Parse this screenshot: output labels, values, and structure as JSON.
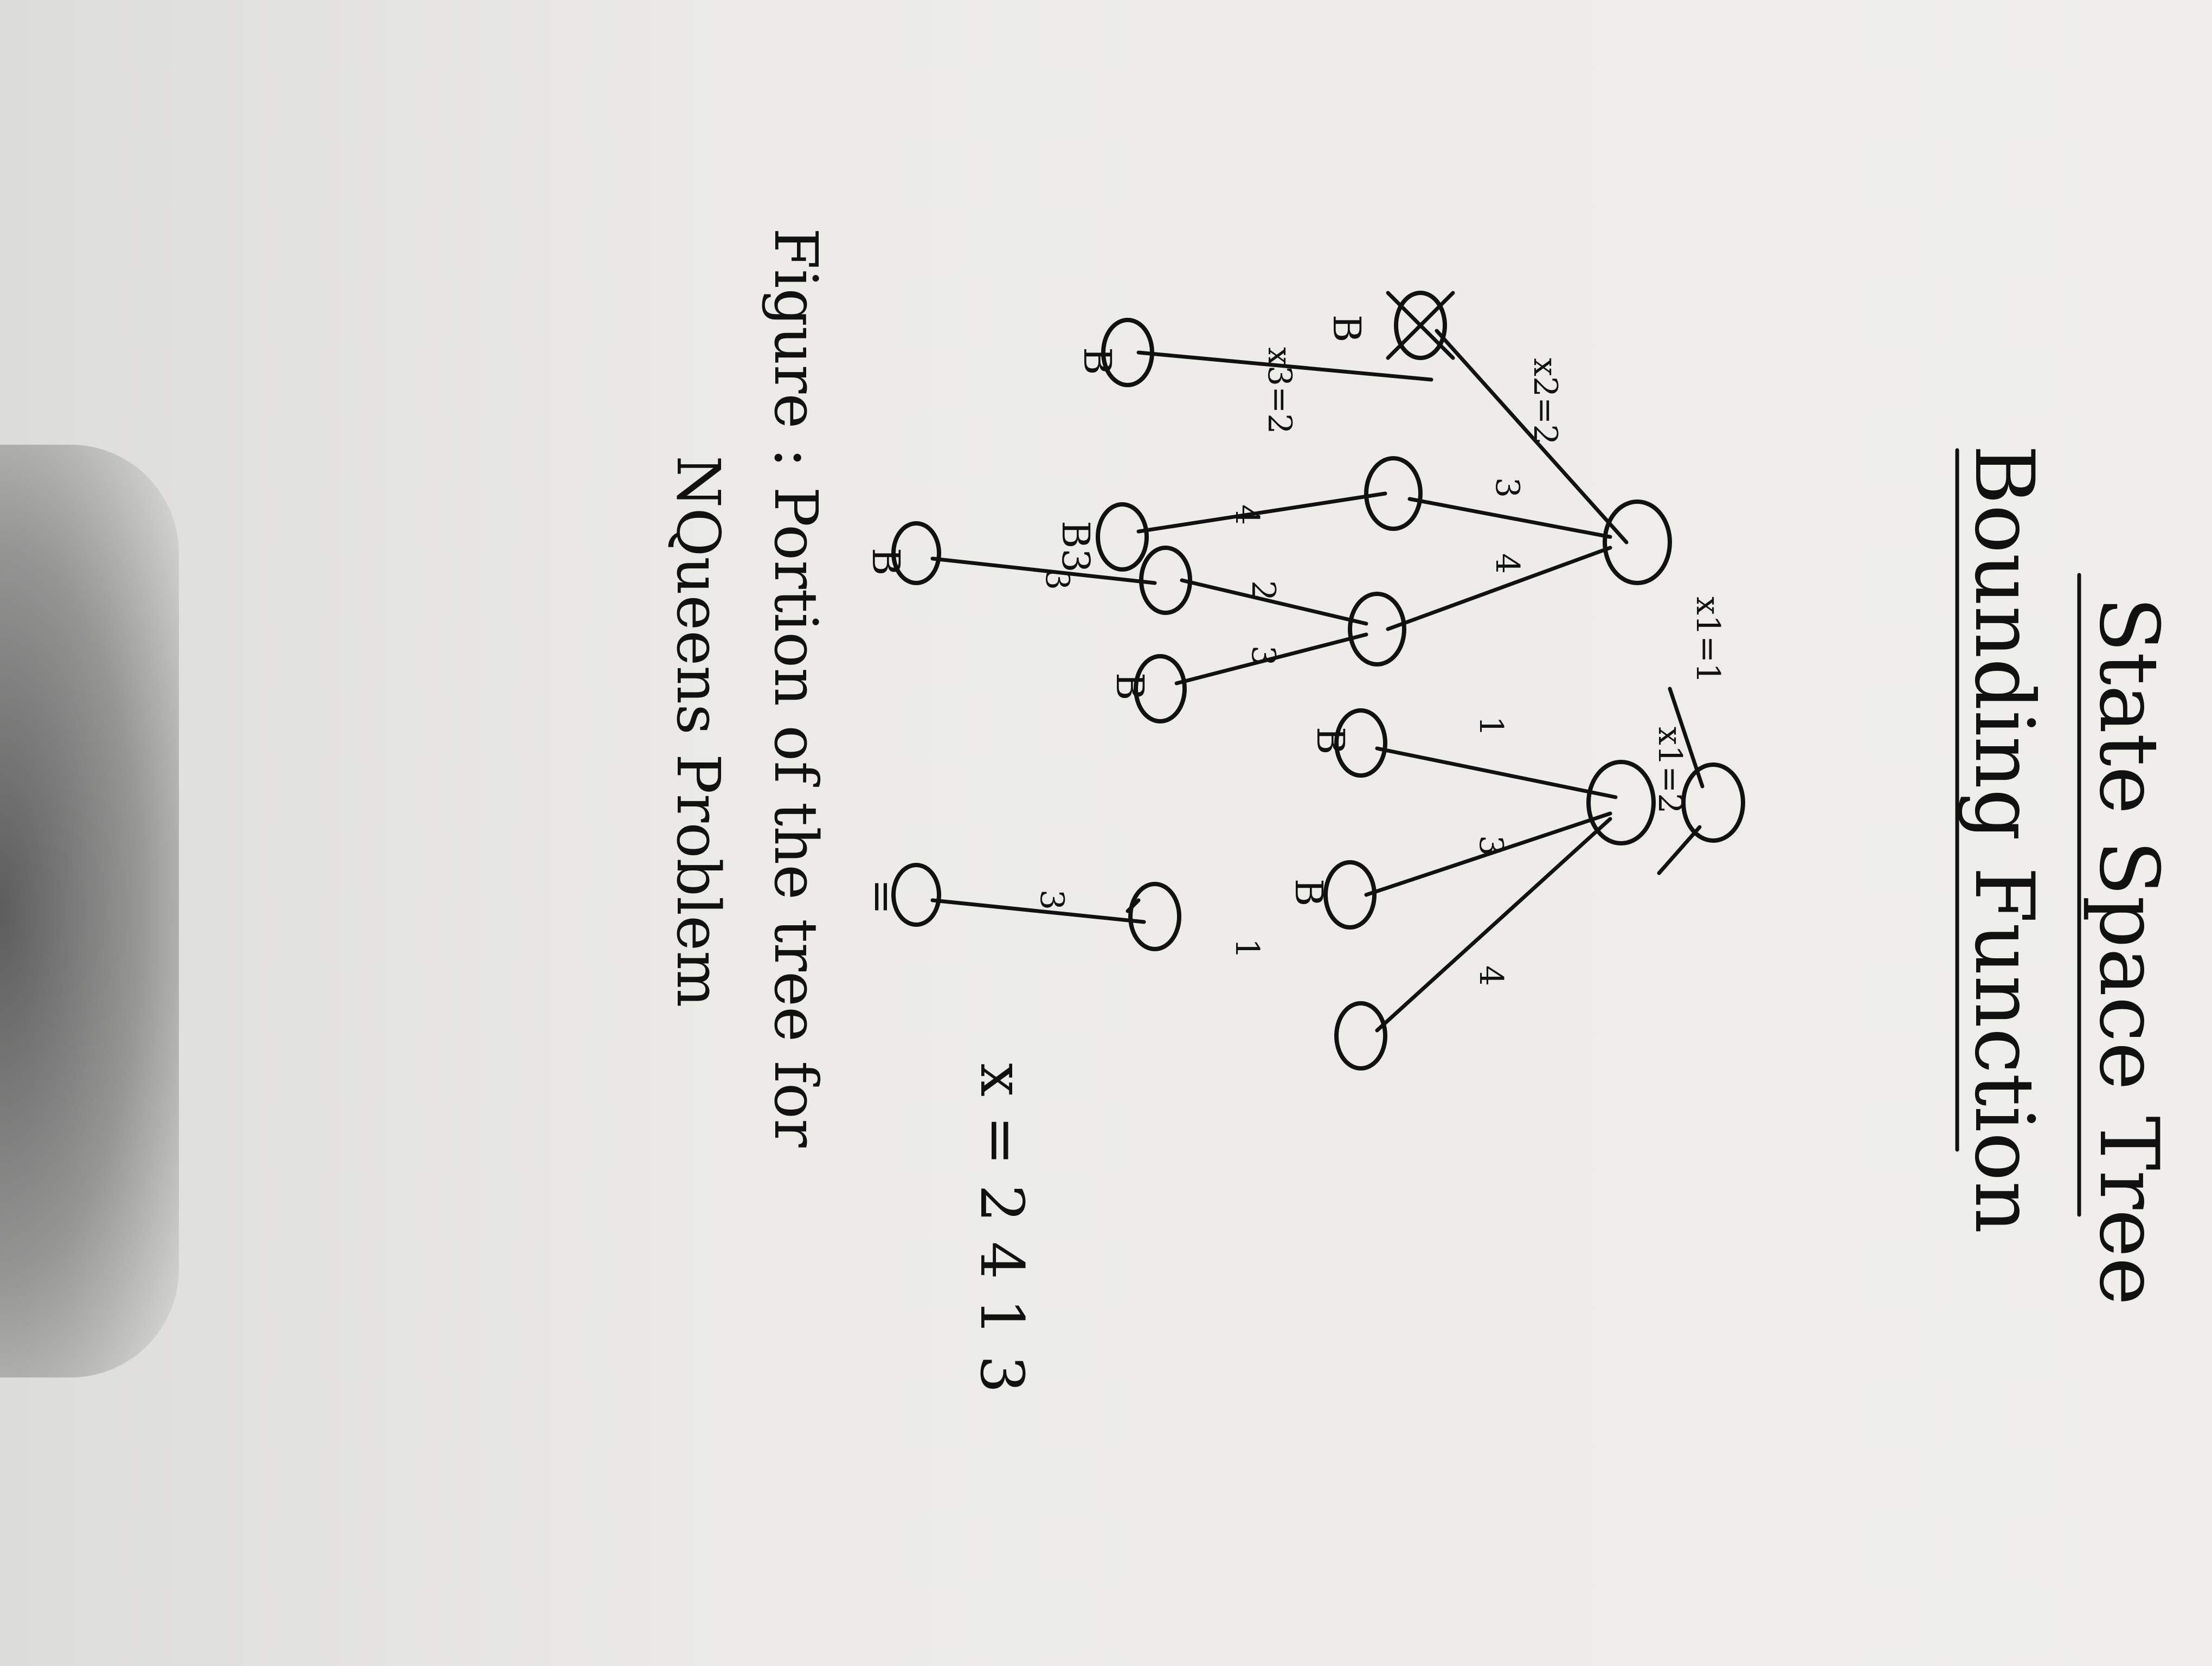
{
  "title": "State Space Tree",
  "subtitle": "Bounding Function",
  "caption_line1": "Figure : Portion of the tree for",
  "caption_line2": "NQueens Problem",
  "solution": "x = 2 4 1 3",
  "edges": {
    "root_to_left": "x1=1",
    "root_to_right": "x1=2",
    "a_to_c": "x2=2",
    "a_to_d": "3",
    "a_to_e": "4",
    "c_to_f": "x3=2",
    "c_to_g": "4",
    "e_to_h": "2",
    "e_to_i": "3",
    "h_to_j": "3",
    "b_to_k": "1",
    "b_to_l": "3",
    "b_to_m": "4",
    "m_to_n": "1",
    "n_to_o": "3"
  },
  "bound_labels": {
    "c": "B",
    "f": "B",
    "g": "B3",
    "j": "B",
    "i": "B",
    "k": "B",
    "l": "B"
  },
  "cross_mark": "x",
  "underline_mark": "="
}
